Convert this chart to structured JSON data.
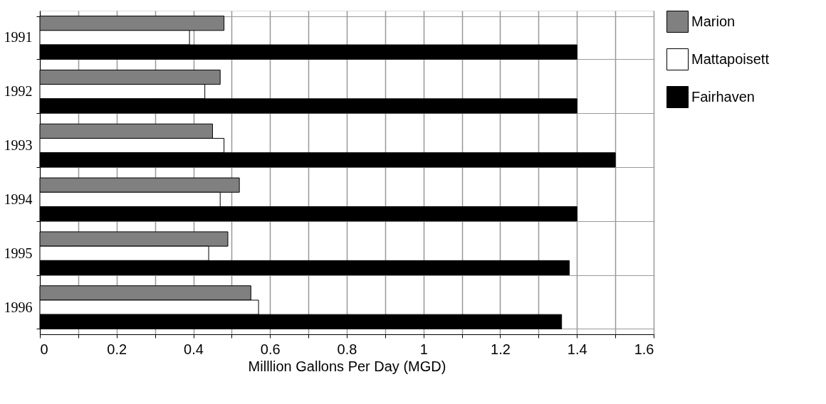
{
  "chart_data": {
    "type": "bar",
    "orientation": "horizontal",
    "xlabel": "Milllion Gallons Per Day (MGD)",
    "categories": [
      "1991",
      "1992",
      "1993",
      "1994",
      "1995",
      "1996"
    ],
    "series": [
      {
        "name": "Marion",
        "color": "#808080",
        "values": [
          0.48,
          0.47,
          0.45,
          0.52,
          0.49,
          0.55
        ]
      },
      {
        "name": "Mattapoisett",
        "color": "#ffffff",
        "values": [
          0.39,
          0.43,
          0.48,
          0.47,
          0.44,
          0.57
        ]
      },
      {
        "name": "Fairhaven",
        "color": "#000000",
        "values": [
          1.4,
          1.4,
          1.5,
          1.4,
          1.38,
          1.36
        ]
      }
    ],
    "xlim": [
      0,
      1.6
    ],
    "xticks": [
      0,
      {
        "value": 0.1,
        "label": null
      },
      0.2,
      {
        "value": 0.3,
        "label": null
      },
      0.4,
      {
        "value": 0.5,
        "label": null
      },
      0.6,
      {
        "value": 0.7,
        "label": null
      },
      0.8,
      {
        "value": 0.9,
        "label": null
      },
      1,
      {
        "value": 1.1,
        "label": null
      },
      1.2,
      {
        "value": 1.3,
        "label": null
      },
      1.4,
      {
        "value": 1.5,
        "label": null
      },
      1.6
    ],
    "grid": true,
    "legend": "right"
  }
}
